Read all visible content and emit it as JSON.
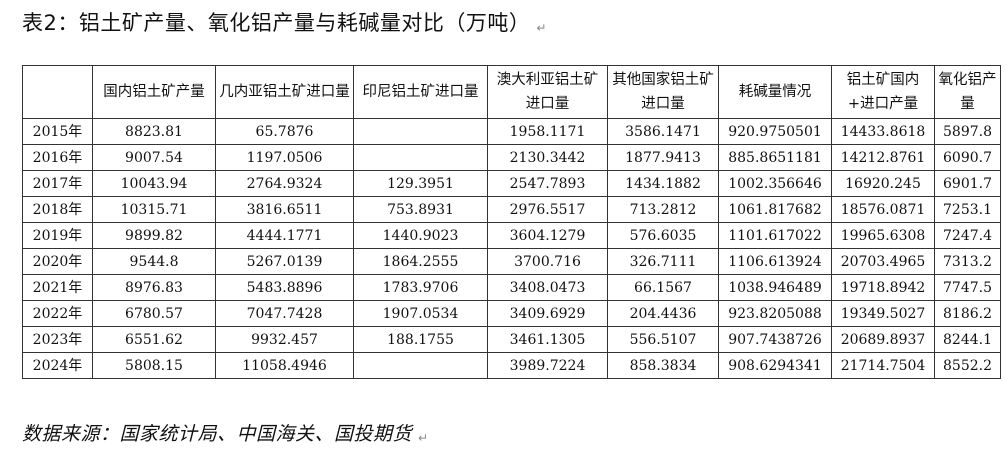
{
  "title": "表2：铝土矿产量、氧化铝产量与耗碱量对比（万吨）",
  "paragraph_mark": "↵",
  "table": {
    "headers": [
      "",
      "国内铝土矿产量",
      "几内亚铝土矿进口量",
      "印尼铝土矿进口量",
      "澳大利亚铝土矿进口量",
      "其他国家铝土矿进口量",
      "耗碱量情况",
      "铝土矿国内+进口产量",
      "氧化铝产量"
    ],
    "rows": [
      [
        "2015年",
        "8823.81",
        "65.7876",
        "",
        "1958.1171",
        "3586.1471",
        "920.9750501",
        "14433.8618",
        "5897.8"
      ],
      [
        "2016年",
        "9007.54",
        "1197.0506",
        "",
        "2130.3442",
        "1877.9413",
        "885.8651181",
        "14212.8761",
        "6090.7"
      ],
      [
        "2017年",
        "10043.94",
        "2764.9324",
        "129.3951",
        "2547.7893",
        "1434.1882",
        "1002.356646",
        "16920.245",
        "6901.7"
      ],
      [
        "2018年",
        "10315.71",
        "3816.6511",
        "753.8931",
        "2976.5517",
        "713.2812",
        "1061.817682",
        "18576.0871",
        "7253.1"
      ],
      [
        "2019年",
        "9899.82",
        "4444.1771",
        "1440.9023",
        "3604.1279",
        "576.6035",
        "1101.617022",
        "19965.6308",
        "7247.4"
      ],
      [
        "2020年",
        "9544.8",
        "5267.0139",
        "1864.2555",
        "3700.716",
        "326.7111",
        "1106.613924",
        "20703.4965",
        "7313.2"
      ],
      [
        "2021年",
        "8976.83",
        "5483.8896",
        "1783.9706",
        "3408.0473",
        "66.1567",
        "1038.946489",
        "19718.8942",
        "7747.5"
      ],
      [
        "2022年",
        "6780.57",
        "7047.7428",
        "1907.0534",
        "3409.6929",
        "204.4436",
        "923.8205088",
        "19349.5027",
        "8186.2"
      ],
      [
        "2023年",
        "6551.62",
        "9932.457",
        "188.1755",
        "3461.1305",
        "556.5107",
        "907.7438726",
        "20689.8937",
        "8244.1"
      ],
      [
        "2024年",
        "5808.15",
        "11058.4946",
        "",
        "3989.7224",
        "858.3834",
        "908.6294341",
        "21714.7504",
        "8552.2"
      ]
    ]
  },
  "source": "数据来源：国家统计局、中国海关、国投期货"
}
